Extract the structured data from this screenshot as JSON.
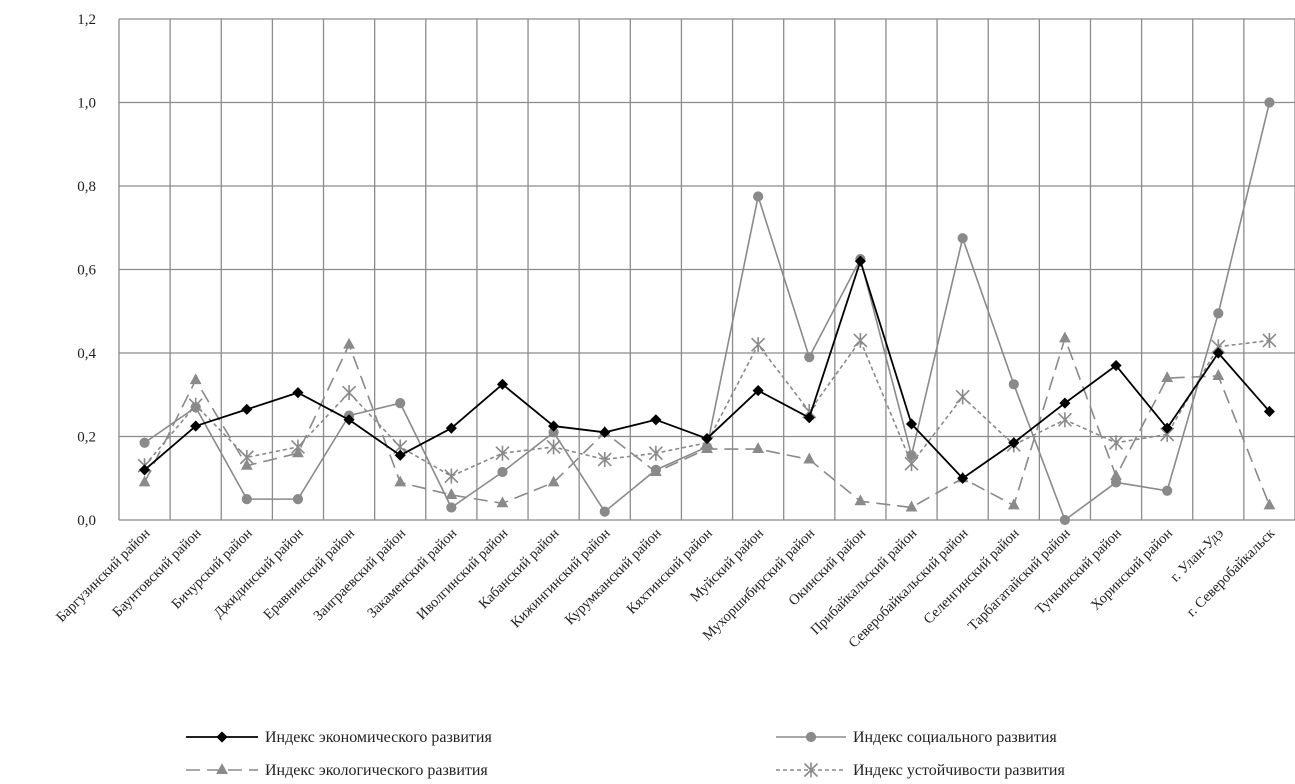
{
  "chart_data": {
    "type": "line",
    "ylim": [
      0,
      1.2
    ],
    "yticks": [
      "0,0",
      "0,2",
      "0,4",
      "0,6",
      "0,8",
      "1,0",
      "1,2"
    ],
    "grid": true,
    "legend_position": "bottom",
    "categories": [
      "Баргузинский район",
      "Баунтовский район",
      "Бичурский район",
      "Джидинский район",
      "Еравнинский район",
      "Заиграевский район",
      "Закаменский район",
      "Иволгинский район",
      "Кабанский район",
      "Кижингинский район",
      "Курумканский район",
      "Кяхтинский район",
      "Муйский район",
      "Мухоршибирский район",
      "Окинский район",
      "Прибайкальский район",
      "Северобайкальский район",
      "Селенгинский район",
      "Тарбагатайский район",
      "Тункинский район",
      "Хоринский район",
      "г. Улан-Удэ",
      "г. Северобайкальск"
    ],
    "series": [
      {
        "name": "Индекс экономического развития",
        "color": "#000000",
        "marker": "diamond",
        "dash": "solid",
        "values": [
          0.12,
          0.225,
          0.265,
          0.305,
          0.24,
          0.155,
          0.22,
          0.325,
          0.225,
          0.21,
          0.24,
          0.195,
          0.31,
          0.245,
          0.62,
          0.23,
          0.1,
          0.185,
          0.28,
          0.37,
          0.22,
          0.4,
          0.26
        ]
      },
      {
        "name": "Индекс социального развития",
        "color": "#8a8a8a",
        "marker": "circle",
        "dash": "solid",
        "values": [
          0.185,
          0.27,
          0.05,
          0.05,
          0.25,
          0.28,
          0.03,
          0.115,
          0.21,
          0.02,
          0.12,
          0.175,
          0.775,
          0.39,
          0.625,
          0.155,
          0.675,
          0.325,
          0.0,
          0.09,
          0.07,
          0.495,
          1.0
        ]
      },
      {
        "name": "Индекс экологического развития",
        "color": "#8a8a8a",
        "marker": "triangle",
        "dash": "longdash",
        "values": [
          0.09,
          0.335,
          0.13,
          0.16,
          0.42,
          0.09,
          0.06,
          0.04,
          0.09,
          0.21,
          0.115,
          0.17,
          0.17,
          0.145,
          0.045,
          0.03,
          0.1,
          0.035,
          0.435,
          0.105,
          0.34,
          0.345,
          0.035
        ]
      },
      {
        "name": "Индекс устойчивости развития",
        "color": "#8a8a8a",
        "marker": "asterisk",
        "dash": "shortdash",
        "values": [
          0.13,
          0.275,
          0.15,
          0.175,
          0.305,
          0.175,
          0.105,
          0.16,
          0.175,
          0.145,
          0.16,
          0.185,
          0.42,
          0.26,
          0.43,
          0.135,
          0.295,
          0.18,
          0.24,
          0.185,
          0.205,
          0.415,
          0.43
        ]
      }
    ]
  }
}
